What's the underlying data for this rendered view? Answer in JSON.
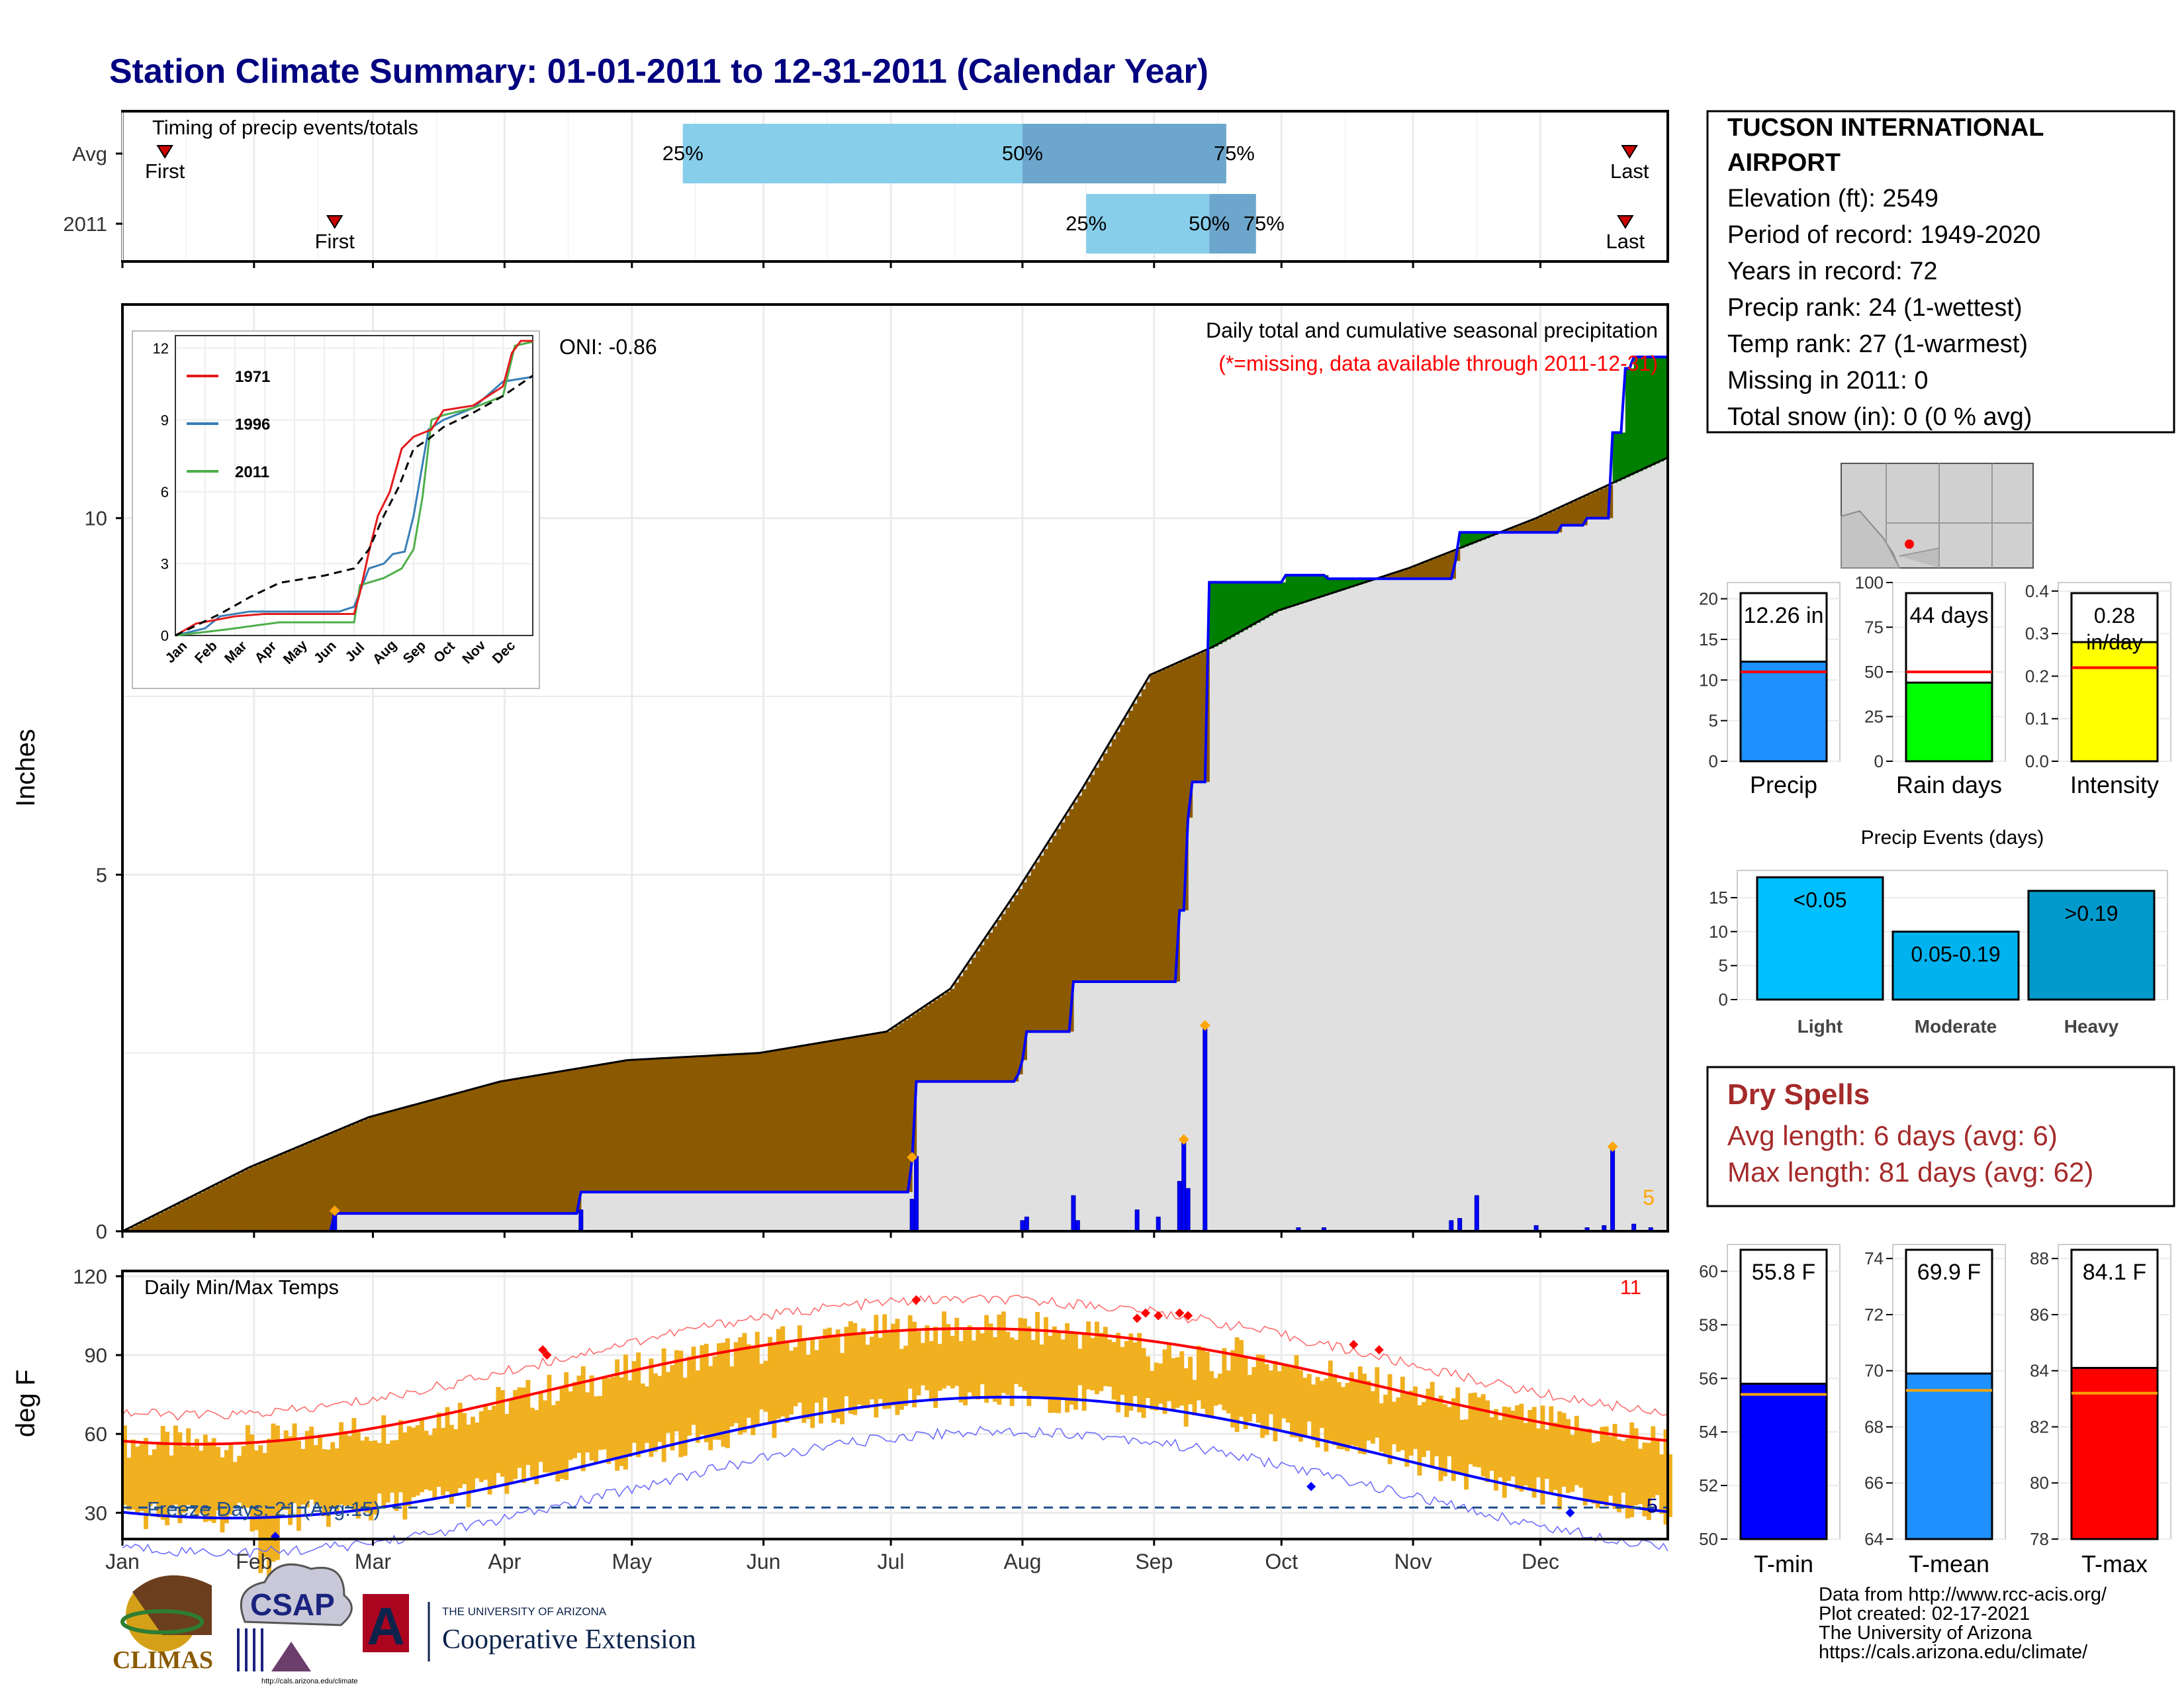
{
  "header": {
    "title": "Station Climate Summary: 01-01-2011 to 12-31-2011 (Calendar Year)"
  },
  "colors": {
    "title": "#000080",
    "avg_cum": "#000000",
    "year_cum": "#0000ff",
    "deficit": "#8b5a00",
    "surplus": "#008000",
    "gray": "#e0e0e0",
    "temp_bar": "#f0b020",
    "tmax": "#ff0000",
    "tmin": "#0000ff",
    "freeze": "#1f4e8c",
    "dry": "#a52a2a",
    "missing_note": "#ff0000"
  },
  "months": [
    "Jan",
    "Feb",
    "Mar",
    "Apr",
    "May",
    "Jun",
    "Jul",
    "Aug",
    "Sep",
    "Oct",
    "Nov",
    "Dec"
  ],
  "station": {
    "name_line1": "TUCSON INTERNATIONAL",
    "name_line2": "AIRPORT",
    "elevation": "Elevation (ft): 2549",
    "period": "Period of record: 1949-2020",
    "years": "Years in record: 72",
    "precip_rank": "Precip rank: 24 (1-wettest)",
    "temp_rank": "Temp rank: 27 (1-warmest)",
    "missing": "Missing in 2011: 0",
    "snow": "Total snow (in): 0 (0 % avg)"
  },
  "timing": {
    "title": "Timing of precip events/totals",
    "rows": [
      {
        "label": "Avg",
        "first_doy": 11,
        "last_doy": 356,
        "p25_doy": 133,
        "p50_doy": 213,
        "p75_doy": 261
      },
      {
        "label": "2011",
        "first_doy": 51,
        "last_doy": 355,
        "p25_doy": 228,
        "p50_doy": 257,
        "p75_doy": 268
      }
    ],
    "first_label": "First",
    "last_label": "Last",
    "p25_label": "25%",
    "p50_label": "50%",
    "p75_label": "75%"
  },
  "precip": {
    "ylabel": "Inches",
    "title": "Daily total and cumulative seasonal precipitation",
    "missing_note": "(*=missing, data available through 2011-12-31)",
    "oni": "ONI: -0.86",
    "count_label": "5",
    "yticks": [
      0,
      5,
      10
    ],
    "ylim": [
      0,
      12.26
    ],
    "avg_cumulative": [
      [
        1,
        0
      ],
      [
        31,
        0.9
      ],
      [
        59,
        1.6
      ],
      [
        90,
        2.1
      ],
      [
        120,
        2.4
      ],
      [
        151,
        2.5
      ],
      [
        181,
        2.8
      ],
      [
        196,
        3.4
      ],
      [
        212,
        4.8
      ],
      [
        227,
        6.2
      ],
      [
        243,
        7.8
      ],
      [
        258,
        8.2
      ],
      [
        273,
        8.7
      ],
      [
        304,
        9.3
      ],
      [
        334,
        10.0
      ],
      [
        365,
        10.85
      ]
    ],
    "year_cumulative": [
      [
        1,
        0
      ],
      [
        51,
        0.25
      ],
      [
        108,
        0.25
      ],
      [
        109,
        0.55
      ],
      [
        186,
        0.55
      ],
      [
        187,
        1.0
      ],
      [
        188,
        2.1
      ],
      [
        212,
        2.2
      ],
      [
        213,
        2.4
      ],
      [
        214,
        2.8
      ],
      [
        224,
        2.8
      ],
      [
        225,
        3.5
      ],
      [
        245,
        3.5
      ],
      [
        250,
        4.5
      ],
      [
        252,
        5.8
      ],
      [
        253,
        6.3
      ],
      [
        256,
        6.3
      ],
      [
        257,
        9.1
      ],
      [
        275,
        9.2
      ],
      [
        285,
        9.15
      ],
      [
        315,
        9.4
      ],
      [
        316,
        9.8
      ],
      [
        340,
        9.9
      ],
      [
        346,
        10.0
      ],
      [
        352,
        11.2
      ],
      [
        355,
        12.1
      ],
      [
        357,
        12.26
      ],
      [
        365,
        12.26
      ]
    ],
    "daily": [
      [
        51,
        0.25
      ],
      [
        109,
        0.3
      ],
      [
        187,
        0.45
      ],
      [
        188,
        1.05
      ],
      [
        213,
        0.15
      ],
      [
        214,
        0.2
      ],
      [
        225,
        0.5
      ],
      [
        226,
        0.15
      ],
      [
        240,
        0.3
      ],
      [
        245,
        0.2
      ],
      [
        250,
        0.7
      ],
      [
        251,
        1.25
      ],
      [
        252,
        0.6
      ],
      [
        256,
        2.85
      ],
      [
        278,
        0.05
      ],
      [
        284,
        0.05
      ],
      [
        314,
        0.15
      ],
      [
        316,
        0.18
      ],
      [
        320,
        0.5
      ],
      [
        334,
        0.08
      ],
      [
        346,
        0.05
      ],
      [
        350,
        0.08
      ],
      [
        352,
        1.15
      ],
      [
        357,
        0.1
      ],
      [
        361,
        0.05
      ]
    ],
    "marked_days": [
      [
        51,
        0.25
      ],
      [
        187,
        1.0
      ],
      [
        251,
        1.25
      ],
      [
        256,
        2.85
      ],
      [
        352,
        1.15
      ]
    ]
  },
  "inset": {
    "yticks": [
      0,
      3,
      6,
      9,
      12
    ],
    "legend": [
      {
        "name": "1971",
        "color": "#e41a1c"
      },
      {
        "name": "1996",
        "color": "#377eb8"
      },
      {
        "name": "2011",
        "color": "#4daf4a"
      }
    ],
    "series": {
      "avg": [
        [
          0,
          0
        ],
        [
          1.5,
          0.9
        ],
        [
          2.5,
          1.6
        ],
        [
          3.5,
          2.2
        ],
        [
          5,
          2.5
        ],
        [
          6,
          2.8
        ],
        [
          6.5,
          3.6
        ],
        [
          7,
          5
        ],
        [
          7.5,
          6.2
        ],
        [
          8,
          7.8
        ],
        [
          8.5,
          8.2
        ],
        [
          9,
          8.7
        ],
        [
          10,
          9.3
        ],
        [
          11,
          10
        ],
        [
          12,
          10.85
        ]
      ],
      "y1971": [
        [
          0,
          0
        ],
        [
          0.7,
          0.5
        ],
        [
          2,
          0.8
        ],
        [
          3,
          0.9
        ],
        [
          6,
          0.9
        ],
        [
          6.2,
          1.8
        ],
        [
          6.5,
          3.5
        ],
        [
          6.8,
          5
        ],
        [
          7.2,
          6
        ],
        [
          7.6,
          7.8
        ],
        [
          8,
          8.3
        ],
        [
          8.6,
          8.6
        ],
        [
          9,
          9.4
        ],
        [
          10,
          9.6
        ],
        [
          11,
          10.4
        ],
        [
          11.3,
          11.8
        ],
        [
          11.6,
          12.3
        ],
        [
          12,
          12.3
        ]
      ],
      "y1996": [
        [
          0,
          0
        ],
        [
          1,
          0.3
        ],
        [
          1.5,
          0.8
        ],
        [
          2.5,
          1
        ],
        [
          5.5,
          1
        ],
        [
          6,
          1.2
        ],
        [
          6.5,
          2.8
        ],
        [
          7,
          3
        ],
        [
          7.3,
          3.4
        ],
        [
          7.7,
          3.5
        ],
        [
          8,
          5
        ],
        [
          8.5,
          8.6
        ],
        [
          9,
          9
        ],
        [
          10,
          9.5
        ],
        [
          11,
          10.6
        ],
        [
          12,
          10.8
        ]
      ],
      "y2011": [
        [
          0,
          0
        ],
        [
          1.7,
          0.25
        ],
        [
          3.5,
          0.55
        ],
        [
          6,
          0.55
        ],
        [
          6.2,
          2.1
        ],
        [
          7,
          2.4
        ],
        [
          7.6,
          2.8
        ],
        [
          8,
          3.6
        ],
        [
          8.3,
          5.8
        ],
        [
          8.6,
          9
        ],
        [
          9,
          9.2
        ],
        [
          10,
          9.5
        ],
        [
          10.6,
          9.8
        ],
        [
          11,
          10
        ],
        [
          11.4,
          12.1
        ],
        [
          12,
          12.26
        ]
      ]
    }
  },
  "temps": {
    "ylabel": "deg F",
    "title": "Daily Min/Max Temps",
    "yticks": [
      30,
      60,
      90,
      120
    ],
    "ylim": [
      20,
      122
    ],
    "freeze_label": "Freeze Days: 21 (Avg:15)",
    "count_top": "11",
    "count_bottom": "5",
    "freeze_line": 32
  },
  "stat_bars": [
    {
      "name": "Precip",
      "value_label": "12.26 in",
      "value": 12.26,
      "avg": 11.0,
      "ymax": 22,
      "yticks": [
        0,
        5,
        10,
        15,
        20
      ],
      "color": "#1e90ff"
    },
    {
      "name": "Rain days",
      "value_label": "44 days",
      "value": 44,
      "avg": 50,
      "ymax": 100,
      "yticks": [
        0,
        25,
        50,
        75,
        100
      ],
      "color": "#00ff00"
    },
    {
      "name": "Intensity",
      "value_label": "0.28 in/day",
      "value": 0.28,
      "avg": 0.22,
      "ymax": 0.42,
      "yticks": [
        "0.0",
        "0.1",
        "0.2",
        "0.3",
        "0.4"
      ],
      "color": "#ffff00"
    }
  ],
  "events": {
    "title": "Precip Events (days)",
    "yticks": [
      0,
      5,
      10,
      15
    ],
    "ymax": 19,
    "bars": [
      {
        "name": "Light",
        "label": "<0.05",
        "value": 18,
        "color": "#00bfff"
      },
      {
        "name": "Moderate",
        "label": "0.05-0.19",
        "value": 10,
        "color": "#00b2ee"
      },
      {
        "name": "Heavy",
        "label": ">0.19",
        "value": 16,
        "color": "#009acd"
      }
    ]
  },
  "dry_spells": {
    "title": "Dry Spells",
    "avg_length": "Avg length: 6 days (avg: 6)",
    "max_length": "Max length: 81 days (avg: 62)"
  },
  "temp_bars": [
    {
      "name": "T-min",
      "value_label": "55.8 F",
      "value": 55.8,
      "avg": 55.4,
      "ymin": 50,
      "ymax": 61,
      "yticks": [
        50,
        52,
        54,
        56,
        58,
        60
      ],
      "color": "#0000ff"
    },
    {
      "name": "T-mean",
      "value_label": "69.9 F",
      "value": 69.9,
      "avg": 69.3,
      "ymin": 64,
      "ymax": 74.5,
      "yticks": [
        64,
        66,
        68,
        70,
        72,
        74
      ],
      "color": "#1e90ff"
    },
    {
      "name": "T-max",
      "value_label": "84.1 F",
      "value": 84.1,
      "avg": 83.2,
      "ymin": 78,
      "ymax": 88.5,
      "yticks": [
        78,
        80,
        82,
        84,
        86,
        88
      ],
      "color": "#ff0000"
    }
  ],
  "footer": {
    "line1": "Data from http://www.rcc-acis.org/",
    "line2": "Plot created: 02-17-2021",
    "line3": "The University of Arizona",
    "line4": "https://cals.arizona.edu/climate/"
  },
  "logos": {
    "climas": "CLIMAS",
    "csap": "CSAP",
    "csap_url": "http://cals.arizona.edu/climate",
    "ua_small": "THE UNIVERSITY OF ARIZONA",
    "ua_big": "Cooperative Extension",
    "ua_letter": "A"
  }
}
